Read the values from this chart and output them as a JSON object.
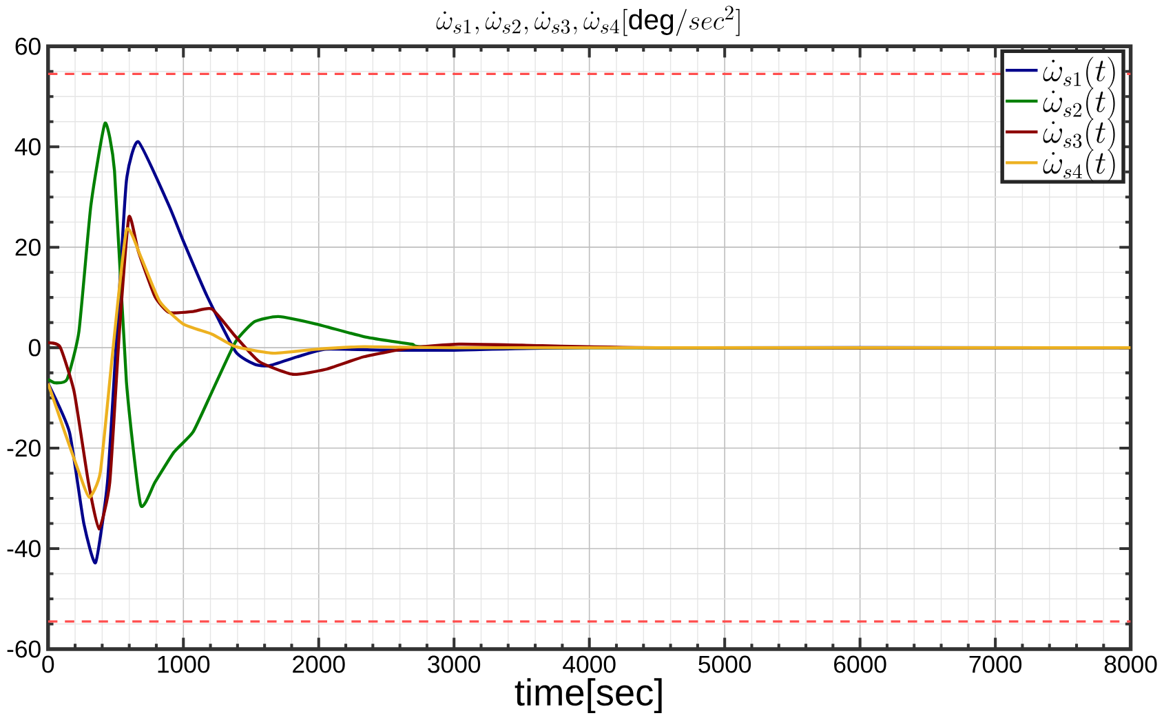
{
  "chart_data": {
    "type": "line",
    "title": "\\dot{\\omega}_{s1},\\dot{\\omega}_{s2},\\dot{\\omega}_{s3},\\dot{\\omega}_{s4}[\\mathrm{deg}/sec^{2}]",
    "xlabel": "time[sec]",
    "xlim": [
      0,
      8000
    ],
    "ylim": [
      -60,
      60
    ],
    "xticks": [
      0,
      1000,
      2000,
      3000,
      4000,
      5000,
      6000,
      7000,
      8000
    ],
    "yticks": [
      -60,
      -40,
      -20,
      0,
      20,
      40,
      60
    ],
    "grid": true,
    "legend": "top right",
    "line_style": "solid",
    "marker": "none",
    "ref_lines": [
      {
        "axis": "y",
        "value": 54.5,
        "color": "#ff4d4d",
        "line_style": "dashed"
      },
      {
        "axis": "y",
        "value": -54.5,
        "color": "#ff4d4d",
        "line_style": "dashed"
      }
    ],
    "series": [
      {
        "name": "\\dot{\\omega}_{s1}(t)",
        "color": "#00008b",
        "x": [
          0,
          158,
          263,
          351,
          439,
          509,
          579,
          667,
          895,
          1000,
          1176,
          1386,
          1527,
          1632,
          1843,
          2053,
          2500,
          3000,
          4000,
          8000
        ],
        "values": [
          -7.1,
          -16.8,
          -34.8,
          -42.8,
          -26.8,
          3.2,
          33.2,
          41,
          28.2,
          21.2,
          10.2,
          -0.8,
          -3.3,
          -3.6,
          -1.8,
          -0.3,
          -0.5,
          -0.5,
          0,
          0
        ]
      },
      {
        "name": "\\dot{\\omega}_{s2}(t)",
        "color": "#008000",
        "x": [
          0,
          53,
          140,
          228,
          316,
          421,
          491,
          579,
          684,
          790,
          930,
          1071,
          1211,
          1386,
          1527,
          1702,
          1983,
          2334,
          2685,
          3036,
          8000
        ],
        "values": [
          -6.3,
          -7,
          -6.3,
          3.2,
          28.2,
          44.7,
          35.2,
          -6.8,
          -31.3,
          -26.8,
          -20.8,
          -16.8,
          -8.8,
          1.2,
          5.2,
          6.2,
          4.7,
          2.2,
          0.7,
          0,
          0
        ]
      },
      {
        "name": "\\dot{\\omega}_{s3}(t)",
        "color": "#8b0000",
        "x": [
          0,
          88,
          193,
          298,
          376,
          456,
          527,
          597,
          667,
          790,
          895,
          1071,
          1211,
          1386,
          1562,
          1808,
          2053,
          2334,
          2685,
          3036,
          3500,
          4500,
          8000
        ],
        "values": [
          1,
          0.2,
          -8.8,
          -26.8,
          -36.1,
          -26.8,
          3.2,
          26,
          19.2,
          10.2,
          7,
          7.2,
          7.7,
          2.2,
          -2.8,
          -5.3,
          -4.3,
          -1.8,
          0,
          0.7,
          0.5,
          0,
          0
        ]
      },
      {
        "name": "\\dot{\\omega}_{s4}(t)",
        "color": "#edb120",
        "x": [
          0,
          123,
          228,
          305,
          386,
          474,
          579,
          684,
          825,
          1000,
          1211,
          1386,
          1667,
          1983,
          2334,
          3000,
          8000
        ],
        "values": [
          -7.1,
          -16.8,
          -24.8,
          -29.8,
          -24.8,
          -1.8,
          23.4,
          18.2,
          9.2,
          4.7,
          2.7,
          0.2,
          -1.1,
          -0.3,
          0.2,
          0,
          0
        ]
      }
    ]
  }
}
